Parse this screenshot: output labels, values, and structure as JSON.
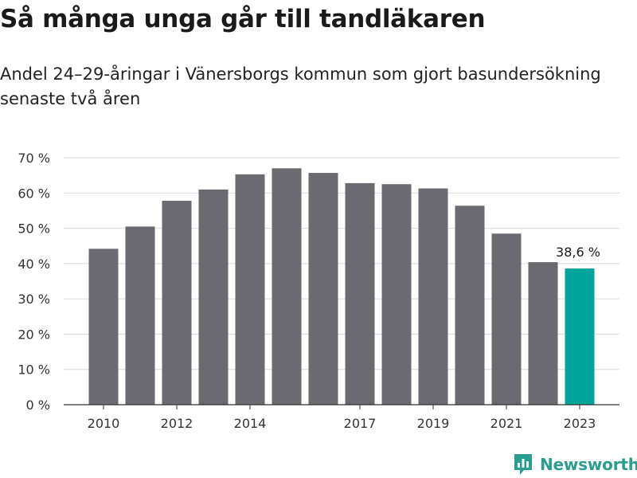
{
  "header": {
    "title": "Så många unga går till tandläkaren",
    "subtitle": "Andel 24–29-åringar i Vänersborgs kommun som gjort basundersökning senaste två åren"
  },
  "brand": {
    "name": "Newsworthy",
    "color": "#2a9d8f",
    "icon": "newsworthy-logo-icon"
  },
  "colors": {
    "bar": "#6b6a70",
    "highlight": "#00a49b",
    "grid": "#d9d9d9",
    "axis": "#333333"
  },
  "chart_data": {
    "type": "bar",
    "categories": [
      "2010",
      "2011",
      "2012",
      "2013",
      "2014",
      "2015",
      "2016",
      "2017",
      "2018",
      "2019",
      "2020",
      "2021",
      "2022",
      "2023"
    ],
    "x_tick_labels": [
      "2010",
      "2012",
      "2014",
      "2017",
      "2019",
      "2021",
      "2023"
    ],
    "values": [
      44.2,
      50.5,
      57.8,
      61.0,
      65.3,
      67.0,
      65.7,
      62.8,
      62.5,
      61.3,
      56.4,
      48.5,
      40.4,
      38.6
    ],
    "highlight_index": 13,
    "data_labels": [
      {
        "index": 13,
        "text": "38,6 %"
      }
    ],
    "ylim": [
      0,
      70
    ],
    "yticks": [
      0,
      10,
      20,
      30,
      40,
      50,
      60,
      70
    ],
    "ytick_labels": [
      "0 %",
      "10 %",
      "20 %",
      "30 %",
      "40 %",
      "50 %",
      "60 %",
      "70 %"
    ],
    "grid": true,
    "xlabel": "",
    "ylabel": ""
  }
}
